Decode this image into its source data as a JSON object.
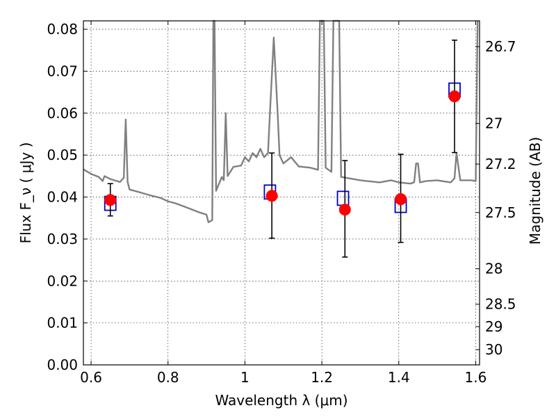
{
  "chart_data": {
    "type": "scatter",
    "xlabel": "Wavelength  λ (μm)",
    "ylabel": "Flux  F_ν  ( μJy )",
    "ylabel_right": "Magnitude (AB)",
    "xlim": [
      0.58,
      1.61
    ],
    "ylim": [
      0.0,
      0.082
    ],
    "x_ticks": [
      0.6,
      0.8,
      1.0,
      1.2,
      1.4,
      1.6
    ],
    "x_tick_labels": [
      "0.6",
      "0.8",
      "1",
      "1.2",
      "1.4",
      "1.6"
    ],
    "y_ticks": [
      0.0,
      0.01,
      0.02,
      0.03,
      0.04,
      0.05,
      0.06,
      0.07,
      0.08
    ],
    "y_tick_labels": [
      "0.00",
      "0.01",
      "0.02",
      "0.03",
      "0.04",
      "0.05",
      "0.06",
      "0.07",
      "0.08"
    ],
    "mag_ticks": [
      26.7,
      27,
      27.2,
      27.5,
      28,
      28.5,
      29,
      30
    ],
    "mag_tick_labels": [
      "26.7",
      "27",
      "27.2",
      "27.5",
      "28",
      "28.5",
      "29",
      "30"
    ],
    "grid": true,
    "series": [
      {
        "kind": "line",
        "color": "#808080",
        "points": [
          [
            0.58,
            0.0466
          ],
          [
            0.6,
            0.0455
          ],
          [
            0.62,
            0.0448
          ],
          [
            0.63,
            0.0438
          ],
          [
            0.635,
            0.045
          ],
          [
            0.65,
            0.0443
          ],
          [
            0.66,
            0.044
          ],
          [
            0.675,
            0.0436
          ],
          [
            0.685,
            0.0446
          ],
          [
            0.69,
            0.0585
          ],
          [
            0.695,
            0.0436
          ],
          [
            0.7,
            0.0418
          ],
          [
            0.72,
            0.0413
          ],
          [
            0.75,
            0.0405
          ],
          [
            0.78,
            0.0398
          ],
          [
            0.8,
            0.039
          ],
          [
            0.82,
            0.0385
          ],
          [
            0.84,
            0.0378
          ],
          [
            0.86,
            0.0371
          ],
          [
            0.88,
            0.0364
          ],
          [
            0.9,
            0.0358
          ],
          [
            0.905,
            0.034
          ],
          [
            0.915,
            0.0345
          ],
          [
            0.918,
            0.082
          ],
          [
            0.921,
            0.082
          ],
          [
            0.925,
            0.0415
          ],
          [
            0.94,
            0.0448
          ],
          [
            0.945,
            0.044
          ],
          [
            0.95,
            0.06
          ],
          [
            0.955,
            0.045
          ],
          [
            0.97,
            0.0472
          ],
          [
            0.99,
            0.0475
          ],
          [
            1.0,
            0.0495
          ],
          [
            1.01,
            0.0485
          ],
          [
            1.02,
            0.0505
          ],
          [
            1.03,
            0.0495
          ],
          [
            1.04,
            0.0515
          ],
          [
            1.05,
            0.0495
          ],
          [
            1.06,
            0.0505
          ],
          [
            1.065,
            0.06
          ],
          [
            1.075,
            0.078
          ],
          [
            1.085,
            0.06
          ],
          [
            1.09,
            0.05
          ],
          [
            1.1,
            0.048
          ],
          [
            1.12,
            0.0495
          ],
          [
            1.14,
            0.0473
          ],
          [
            1.17,
            0.047
          ],
          [
            1.19,
            0.0465
          ],
          [
            1.195,
            0.082
          ],
          [
            1.205,
            0.082
          ],
          [
            1.21,
            0.047
          ],
          [
            1.225,
            0.046
          ],
          [
            1.23,
            0.082
          ],
          [
            1.245,
            0.082
          ],
          [
            1.25,
            0.0448
          ],
          [
            1.3,
            0.044
          ],
          [
            1.35,
            0.0435
          ],
          [
            1.38,
            0.044
          ],
          [
            1.4,
            0.0435
          ],
          [
            1.43,
            0.0432
          ],
          [
            1.44,
            0.0435
          ],
          [
            1.445,
            0.048
          ],
          [
            1.45,
            0.048
          ],
          [
            1.455,
            0.0435
          ],
          [
            1.47,
            0.0438
          ],
          [
            1.5,
            0.044
          ],
          [
            1.52,
            0.0437
          ],
          [
            1.535,
            0.0435
          ],
          [
            1.545,
            0.0445
          ],
          [
            1.55,
            0.0505
          ],
          [
            1.56,
            0.044
          ],
          [
            1.59,
            0.044
          ],
          [
            1.6,
            0.0438
          ],
          [
            1.605,
            0.082
          ]
        ]
      },
      {
        "kind": "open-square",
        "color": "#0000cc",
        "x": [
          0.65,
          1.065,
          1.255,
          1.405,
          1.545
        ],
        "y": [
          0.0385,
          0.0412,
          0.0397,
          0.038,
          0.0655
        ]
      },
      {
        "kind": "filled-circle",
        "color": "#ff0000",
        "x": [
          0.65,
          1.07,
          1.26,
          1.405,
          1.545
        ],
        "y": [
          0.0393,
          0.0403,
          0.037,
          0.0395,
          0.064
        ],
        "yerr_low": [
          0.0038,
          0.0101,
          0.0113,
          0.0103,
          0.0134
        ],
        "yerr_high": [
          0.0039,
          0.0102,
          0.0117,
          0.0107,
          0.0134
        ]
      }
    ]
  }
}
